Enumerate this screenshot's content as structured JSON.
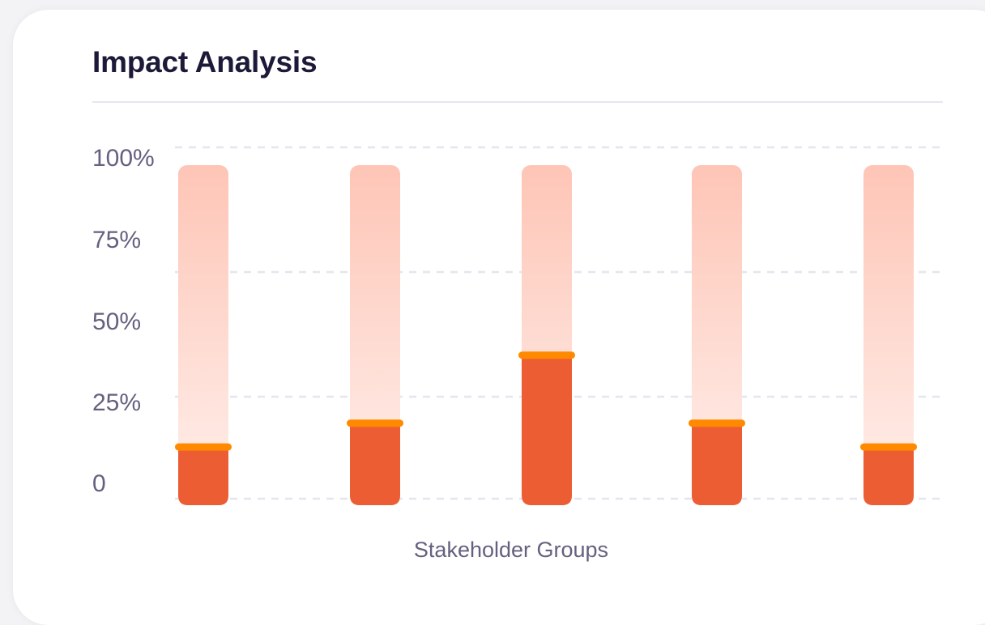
{
  "card": {
    "title": "Impact Analysis"
  },
  "chart_data": {
    "type": "bar",
    "title": "Impact Analysis",
    "xlabel": "Stakeholder Groups",
    "ylabel": "",
    "ylim": [
      0,
      100
    ],
    "y_ticks": [
      {
        "value": 0,
        "label": "0"
      },
      {
        "value": 25,
        "label": "25%"
      },
      {
        "value": 50,
        "label": "50%"
      },
      {
        "value": 75,
        "label": "75%"
      },
      {
        "value": 100,
        "label": "100%"
      }
    ],
    "categories": [
      "",
      "",
      "",
      "",
      ""
    ],
    "series": [
      {
        "values": [
          17,
          24,
          44,
          24,
          17
        ]
      }
    ],
    "grid": true,
    "colors": {
      "bar_fill": "#ec5d34",
      "bar_track_top": "#fec5b6",
      "bar_track_bottom": "#fff0ec",
      "value_marker": "#ff8a00",
      "gridline": "#e5e5ef",
      "tick_text": "#63617f"
    }
  }
}
